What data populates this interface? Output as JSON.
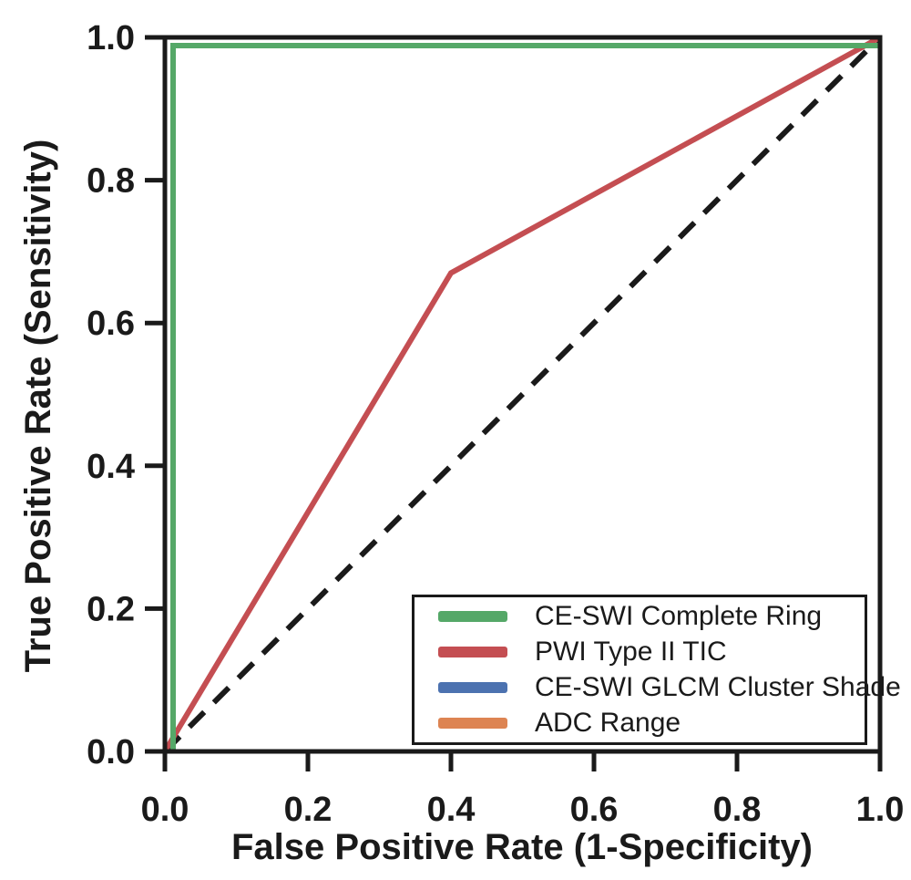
{
  "style": {
    "background": "#ffffff",
    "text_color": "#1a1a1a",
    "frame_color": "#1a1a1a"
  },
  "chart_data": {
    "type": "line",
    "subtype": "roc-curve",
    "title": "",
    "xlabel": "False Positive Rate (1-Specificity)",
    "ylabel": "True Positive Rate (Sensitivity)",
    "xlim": [
      0,
      1
    ],
    "ylim": [
      0,
      1
    ],
    "grid": false,
    "legend_position": "lower right",
    "xticks": [
      {
        "value": 0.0,
        "label": "0.0"
      },
      {
        "value": 0.2,
        "label": "0.2"
      },
      {
        "value": 0.4,
        "label": "0.4"
      },
      {
        "value": 0.6,
        "label": "0.6"
      },
      {
        "value": 0.8,
        "label": "0.8"
      },
      {
        "value": 1.0,
        "label": "1.0"
      }
    ],
    "yticks": [
      {
        "value": 0.0,
        "label": "0.0"
      },
      {
        "value": 0.2,
        "label": "0.2"
      },
      {
        "value": 0.4,
        "label": "0.4"
      },
      {
        "value": 0.6,
        "label": "0.6"
      },
      {
        "value": 0.8,
        "label": "0.8"
      },
      {
        "value": 1.0,
        "label": "1.0"
      }
    ],
    "series": [
      {
        "name": "CE-SWI Complete Ring",
        "color": "#55a868",
        "style": "solid",
        "in_legend": true,
        "points": [
          [
            0,
            0
          ],
          [
            0,
            1
          ],
          [
            1,
            1
          ]
        ]
      },
      {
        "name": "PWI Type II TIC",
        "color": "#c44e52",
        "style": "solid",
        "in_legend": true,
        "points": [
          [
            0,
            0
          ],
          [
            0.4,
            0.67
          ],
          [
            1,
            1
          ]
        ]
      },
      {
        "name": "CE-SWI GLCM Cluster Shade",
        "color": "#4c72b0",
        "style": "solid",
        "in_legend": true,
        "note": "hidden beneath CE-SWI Complete Ring curve",
        "points": [
          [
            0,
            0
          ],
          [
            0,
            1
          ],
          [
            1,
            1
          ]
        ]
      },
      {
        "name": "ADC Range",
        "color": "#dd8452",
        "style": "solid",
        "in_legend": true,
        "note": "hidden beneath CE-SWI Complete Ring curve",
        "points": [
          [
            0,
            0
          ],
          [
            0,
            1
          ],
          [
            1,
            1
          ]
        ]
      }
    ],
    "reference_line": {
      "name": "chance-diagonal",
      "color": "#1a1a1a",
      "style": "dashed",
      "in_legend": false,
      "points": [
        [
          0,
          0
        ],
        [
          1,
          1
        ]
      ]
    }
  }
}
